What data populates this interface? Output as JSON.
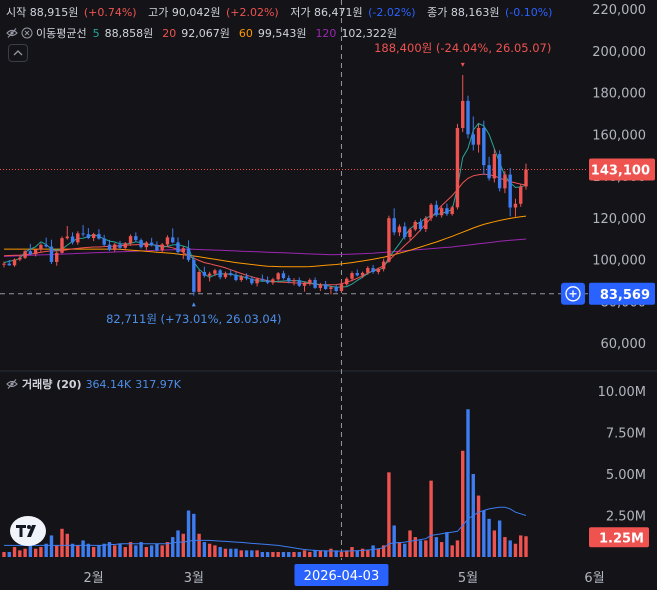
{
  "ohlc": {
    "open_label": "시작",
    "open": "88,915원",
    "open_chg": "(+0.74%)",
    "high_label": "고가",
    "high": "90,042원",
    "high_chg": "(+2.02%)",
    "low_label": "저가",
    "low": "86,471원",
    "low_chg": "(-2.02%)",
    "close_label": "종가",
    "close": "88,163원",
    "close_chg": "(-0.10%)"
  },
  "ma": {
    "label": "이동평균선",
    "items": [
      {
        "period": "5",
        "value": "88,858원",
        "color": "#26a69a"
      },
      {
        "period": "20",
        "value": "92,067원",
        "color": "#ef5350"
      },
      {
        "period": "60",
        "value": "99,543원",
        "color": "#ff9800"
      },
      {
        "period": "120",
        "value": "102,322원",
        "color": "#9c27b0"
      }
    ]
  },
  "volume_legend": {
    "label": "거래량 (20)",
    "v1": "364.14K",
    "v2": "317.97K"
  },
  "annotations": {
    "high": "188,400원 (-24.04%, 26.05.07)",
    "low": "82,711원 (+73.01%, 26.03.04)"
  },
  "price_badges": {
    "last": "143,100",
    "crosshair": "83,569",
    "volume_last": "1.25M"
  },
  "crosshair_date": "2026-04-03",
  "colors": {
    "up": "#ef5350",
    "down": "#2962ff",
    "ma5": "#26a69a",
    "ma20": "#ef5350",
    "ma60": "#ff9800",
    "ma120": "#9c27b0",
    "background": "#131318",
    "volume_ma": "#2962ff"
  },
  "chart_data": {
    "type": "candlestick",
    "price_axis": {
      "ticks": [
        60000,
        80000,
        100000,
        120000,
        140000,
        160000,
        180000,
        200000,
        220000
      ],
      "labels": [
        "60,000",
        "80,000",
        "100,000",
        "120,000",
        "140,000",
        "160,000",
        "180,000",
        "200,000",
        "220,000"
      ]
    },
    "volume_axis": {
      "ticks": [
        2500000,
        5000000,
        7500000,
        10000000
      ],
      "labels": [
        "2.50M",
        "5.00M",
        "7.50M",
        "10.00M"
      ]
    },
    "x_labels": [
      {
        "label": "2월",
        "index": 17
      },
      {
        "label": "3월",
        "index": 36
      },
      {
        "label": "5월",
        "index": 88
      },
      {
        "label": "6월",
        "index": 112
      }
    ],
    "crosshair_index": 64,
    "crosshair_price": 83569,
    "last_price": 143100,
    "candles": [
      [
        97500,
        99000,
        96200,
        98000
      ],
      [
        98000,
        99800,
        97000,
        97200
      ],
      [
        97200,
        100500,
        96500,
        100000
      ],
      [
        100000,
        101800,
        99200,
        100800
      ],
      [
        100800,
        104500,
        100200,
        104000
      ],
      [
        104000,
        107500,
        102000,
        102600
      ],
      [
        102600,
        105200,
        101500,
        104800
      ],
      [
        104800,
        107800,
        103500,
        107000
      ],
      [
        107000,
        110500,
        105800,
        106200
      ],
      [
        106200,
        109500,
        97800,
        98800
      ],
      [
        98800,
        103800,
        97000,
        103200
      ],
      [
        103200,
        111000,
        102800,
        110200
      ],
      [
        110200,
        116000,
        109500,
        111000
      ],
      [
        111000,
        113000,
        107200,
        108200
      ],
      [
        108200,
        113500,
        107000,
        112500
      ],
      [
        112500,
        116500,
        111000,
        112100
      ],
      [
        112100,
        115000,
        109800,
        110300
      ],
      [
        110300,
        112800,
        108800,
        112200
      ],
      [
        112200,
        114500,
        109500,
        110000
      ],
      [
        110000,
        111800,
        106400,
        107100
      ],
      [
        107100,
        109400,
        104100,
        104600
      ],
      [
        104600,
        107900,
        103800,
        107200
      ],
      [
        107200,
        109000,
        104600,
        105600
      ],
      [
        105600,
        108400,
        104300,
        107800
      ],
      [
        107800,
        112000,
        106600,
        111200
      ],
      [
        111200,
        113000,
        108500,
        109300
      ],
      [
        109300,
        110100,
        105200,
        105900
      ],
      [
        105900,
        108800,
        104500,
        108100
      ],
      [
        108100,
        110400,
        106300,
        106800
      ],
      [
        106800,
        108700,
        103900,
        104400
      ],
      [
        104400,
        107900,
        103200,
        107200
      ],
      [
        107200,
        111600,
        106100,
        110600
      ],
      [
        110600,
        114900,
        107800,
        108200
      ],
      [
        108200,
        110600,
        102400,
        103600
      ],
      [
        103600,
        106300,
        100200,
        105400
      ],
      [
        105400,
        109200,
        98800,
        99800
      ],
      [
        99800,
        101800,
        82711,
        84500
      ],
      [
        84500,
        95000,
        84200,
        94000
      ],
      [
        94000,
        96600,
        91400,
        92200
      ],
      [
        92200,
        94100,
        89500,
        93200
      ],
      [
        93200,
        95500,
        92000,
        94800
      ],
      [
        94800,
        95500,
        90500,
        91500
      ],
      [
        91500,
        94200,
        90700,
        93400
      ],
      [
        93400,
        95200,
        91900,
        92600
      ],
      [
        92600,
        94000,
        89500,
        90200
      ],
      [
        90200,
        92600,
        89300,
        91900
      ],
      [
        91900,
        93400,
        90100,
        90900
      ],
      [
        90900,
        92100,
        87800,
        88600
      ],
      [
        88600,
        91400,
        87100,
        90700
      ],
      [
        90700,
        92800,
        89400,
        90000
      ],
      [
        90000,
        91900,
        88200,
        88900
      ],
      [
        88900,
        91200,
        87900,
        90500
      ],
      [
        90500,
        94000,
        89800,
        93400
      ],
      [
        93400,
        94600,
        90400,
        91100
      ],
      [
        91100,
        92400,
        88600,
        89500
      ],
      [
        89500,
        91100,
        87600,
        90100
      ],
      [
        90100,
        91400,
        86800,
        87400
      ],
      [
        87400,
        89500,
        84600,
        88900
      ],
      [
        88900,
        91000,
        87500,
        90200
      ],
      [
        90200,
        91400,
        85900,
        86400
      ],
      [
        86400,
        88800,
        84900,
        88100
      ],
      [
        88100,
        89700,
        85400,
        85900
      ],
      [
        85900,
        87400,
        83300,
        86700
      ],
      [
        86700,
        88100,
        84200,
        84900
      ],
      [
        84900,
        90042,
        84300,
        88163
      ],
      [
        88163,
        91500,
        87400,
        90800
      ],
      [
        90800,
        94300,
        89600,
        93500
      ],
      [
        93500,
        95200,
        91800,
        92400
      ],
      [
        92400,
        94200,
        91100,
        93600
      ],
      [
        93600,
        96800,
        92600,
        95900
      ],
      [
        95900,
        97400,
        93200,
        94000
      ],
      [
        94000,
        96100,
        92900,
        95400
      ],
      [
        95400,
        100400,
        94300,
        99000
      ],
      [
        99000,
        121000,
        98500,
        119800
      ],
      [
        119800,
        124500,
        111600,
        113000
      ],
      [
        113000,
        116800,
        111200,
        115800
      ],
      [
        115800,
        117800,
        109600,
        110800
      ],
      [
        110800,
        115200,
        109400,
        114400
      ],
      [
        114400,
        118800,
        113600,
        118000
      ],
      [
        118000,
        119600,
        113500,
        114600
      ],
      [
        114600,
        120800,
        113200,
        119800
      ],
      [
        119800,
        127000,
        118400,
        126200
      ],
      [
        126200,
        128200,
        120400,
        121200
      ],
      [
        121200,
        125500,
        120100,
        124600
      ],
      [
        124600,
        126800,
        120900,
        121800
      ],
      [
        121800,
        125700,
        121000,
        125000
      ],
      [
        125000,
        165000,
        124000,
        163000
      ],
      [
        163000,
        188400,
        161000,
        176000
      ],
      [
        176000,
        178500,
        158000,
        160000
      ],
      [
        160000,
        168500,
        152200,
        155000
      ],
      [
        155000,
        164800,
        151200,
        163000
      ],
      [
        163000,
        166500,
        140600,
        145200
      ],
      [
        145200,
        149200,
        137800,
        138900
      ],
      [
        138900,
        152800,
        136900,
        150500
      ],
      [
        150500,
        152300,
        132600,
        134100
      ],
      [
        134100,
        142400,
        131800,
        140700
      ],
      [
        140700,
        143800,
        120700,
        124900
      ],
      [
        124900,
        129100,
        120500,
        126700
      ],
      [
        126700,
        136200,
        125200,
        135000
      ],
      [
        135000,
        145900,
        133500,
        143100
      ]
    ],
    "volumes": [
      0.3,
      0.3,
      0.6,
      0.4,
      0.5,
      0.7,
      0.5,
      0.6,
      0.8,
      1.3,
      0.7,
      1.7,
      1.4,
      0.8,
      0.7,
      1.0,
      0.8,
      0.6,
      0.7,
      0.8,
      0.9,
      0.7,
      0.8,
      0.6,
      0.9,
      0.7,
      0.9,
      0.6,
      0.7,
      0.8,
      0.7,
      0.9,
      1.2,
      1.6,
      1.4,
      2.8,
      2.6,
      1.4,
      0.9,
      0.8,
      0.7,
      0.6,
      0.5,
      0.5,
      0.5,
      0.4,
      0.4,
      0.4,
      0.4,
      0.3,
      0.3,
      0.3,
      0.3,
      0.3,
      0.3,
      0.3,
      0.3,
      0.4,
      0.3,
      0.4,
      0.4,
      0.4,
      0.5,
      0.4,
      0.3,
      0.4,
      0.6,
      0.4,
      0.5,
      0.4,
      0.7,
      0.5,
      0.7,
      5.1,
      1.9,
      0.9,
      0.8,
      1.6,
      1.2,
      1.0,
      1.0,
      4.6,
      1.2,
      0.9,
      1.5,
      0.7,
      1.0,
      6.4,
      8.9,
      5.0,
      3.7,
      2.8,
      2.3,
      1.6,
      2.2,
      1.2,
      1.0,
      0.8,
      1.3,
      1.25
    ],
    "ma5": [
      98500,
      99200,
      99600,
      100500,
      103600,
      105000,
      106100,
      108500,
      107200,
      104900,
      104400,
      105000,
      106900,
      108700,
      110100,
      110200,
      111000,
      111900,
      111000,
      109900,
      108800,
      108400,
      107500,
      107400,
      107700,
      108500,
      108000,
      107400,
      107200,
      106600,
      105900,
      106300,
      107000,
      107100,
      106400,
      105700,
      98800,
      95300,
      93100,
      91400,
      92700,
      93200,
      93100,
      92900,
      92500,
      91900,
      91300,
      90500,
      89900,
      89600,
      89700,
      89400,
      89500,
      89700,
      89900,
      89800,
      89900,
      89300,
      88900,
      88300,
      87900,
      87700,
      87100,
      86800,
      86800,
      87000,
      88200,
      90000,
      91500,
      93400,
      94600,
      95000,
      96000,
      101000,
      104200,
      107600,
      111300,
      114600,
      116800,
      117900,
      119800,
      121000,
      121600,
      122000,
      123000,
      123900,
      134600,
      148800,
      153200,
      162000,
      165200,
      164000,
      160000,
      153000,
      146500,
      140100,
      136800,
      134500,
      134800,
      135600
    ],
    "ma20": [
      101800,
      101900,
      102000,
      102100,
      102300,
      102600,
      103000,
      103500,
      103900,
      104100,
      104100,
      104300,
      104700,
      105100,
      105300,
      105600,
      105800,
      106000,
      106000,
      106200,
      106300,
      106400,
      106600,
      106800,
      107000,
      107100,
      107200,
      107100,
      107000,
      106800,
      106500,
      106100,
      105600,
      104800,
      103500,
      101600,
      100600,
      99500,
      98500,
      98000,
      97300,
      96700,
      96000,
      95100,
      94200,
      93300,
      92500,
      91700,
      91000,
      90400,
      89900,
      89500,
      89200,
      89100,
      89000,
      88800,
      88700,
      88600,
      88500,
      88200,
      88000,
      87900,
      87900,
      88000,
      88400,
      89100,
      90000,
      91000,
      92200,
      93400,
      94600,
      95800,
      97000,
      99500,
      102000,
      104300,
      106700,
      109000,
      111500,
      114200,
      117000,
      120000,
      123000,
      125800,
      128200,
      130600,
      133500,
      136700,
      138900,
      140100,
      140600,
      140900,
      140600,
      140000,
      139100,
      138000,
      137300,
      136700,
      136100,
      135700
    ],
    "ma60": [
      105000,
      105000,
      105000,
      105000,
      105000,
      105000,
      105000,
      105000,
      105000,
      105000,
      105000,
      105000,
      105000,
      105000,
      105000,
      105000,
      105000,
      105000,
      105000,
      105000,
      105000,
      105000,
      104900,
      104700,
      104500,
      104300,
      104100,
      103900,
      103700,
      103500,
      103300,
      103100,
      102900,
      102600,
      102300,
      102000,
      101700,
      101300,
      100900,
      100500,
      100100,
      99700,
      99300,
      98900,
      98500,
      98200,
      97900,
      97600,
      97300,
      97000,
      96800,
      96700,
      96600,
      96500,
      96500,
      96500,
      96500,
      96500,
      96600,
      96800,
      97000,
      97200,
      97400,
      97600,
      97900,
      98200,
      98500,
      98900,
      99300,
      99700,
      100100,
      100600,
      101100,
      101700,
      102300,
      103000,
      103700,
      104400,
      105200,
      106000,
      106800,
      107600,
      108400,
      109300,
      110200,
      111100,
      112100,
      113100,
      114100,
      115100,
      116000,
      116800,
      117500,
      118100,
      118700,
      119200,
      119700,
      120100,
      120500,
      120800
    ],
    "ma120": [
      101500,
      101600,
      101700,
      101800,
      101900,
      102000,
      102100,
      102200,
      102300,
      102400,
      102500,
      102600,
      102700,
      102800,
      102900,
      103000,
      103100,
      103200,
      103300,
      103400,
      103500,
      103600,
      103700,
      103800,
      103900,
      104000,
      104100,
      104200,
      104300,
      104400,
      104500,
      104600,
      104700,
      104800,
      104900,
      105000,
      104900,
      104800,
      104700,
      104600,
      104500,
      104400,
      104300,
      104200,
      104100,
      104000,
      103900,
      103800,
      103700,
      103600,
      103500,
      103400,
      103300,
      103200,
      103100,
      103000,
      102900,
      102800,
      102700,
      102600,
      102500,
      102400,
      102322,
      102350,
      102400,
      102500,
      102600,
      102700,
      102800,
      102900,
      103000,
      103200,
      103400,
      103600,
      103800,
      104000,
      104200,
      104400,
      104600,
      104800,
      105000,
      105200,
      105400,
      105600,
      105800,
      106000,
      106300,
      106600,
      106900,
      107200,
      107500,
      107800,
      108100,
      108400,
      108700,
      109000,
      109200,
      109400,
      109600,
      109800
    ],
    "volume_ma": [
      0.7,
      0.7,
      0.7,
      0.7,
      0.7,
      0.7,
      0.7,
      0.7,
      0.7,
      0.7,
      0.7,
      0.7,
      0.7,
      0.7,
      0.7,
      0.7,
      0.7,
      0.7,
      0.7,
      0.7,
      0.75,
      0.75,
      0.8,
      0.8,
      0.8,
      0.8,
      0.8,
      0.8,
      0.8,
      0.8,
      0.8,
      0.8,
      0.85,
      0.9,
      0.9,
      0.95,
      1.0,
      1.0,
      1.0,
      1.0,
      0.98,
      0.96,
      0.94,
      0.92,
      0.9,
      0.88,
      0.85,
      0.82,
      0.8,
      0.78,
      0.75,
      0.72,
      0.7,
      0.65,
      0.6,
      0.55,
      0.5,
      0.45,
      0.42,
      0.4,
      0.38,
      0.37,
      0.364,
      0.36,
      0.35,
      0.36,
      0.37,
      0.38,
      0.4,
      0.42,
      0.45,
      0.5,
      0.55,
      0.8,
      0.85,
      0.87,
      0.9,
      0.95,
      1.0,
      1.05,
      1.1,
      1.3,
      1.35,
      1.4,
      1.45,
      1.5,
      1.55,
      1.9,
      2.3,
      2.5,
      2.7,
      2.8,
      2.9,
      2.95,
      3.0,
      3.0,
      2.9,
      2.7,
      2.6,
      2.5
    ]
  }
}
